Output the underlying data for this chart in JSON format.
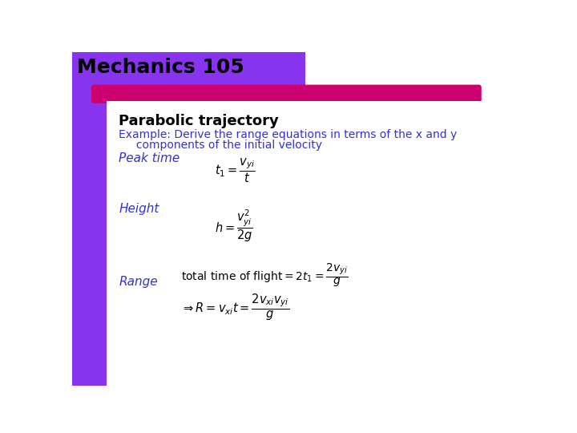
{
  "title": "Mechanics 105",
  "title_color": "#000000",
  "title_fontsize": 18,
  "bar_color": "#cc006e",
  "left_accent_color": "#8833ee",
  "section_title": "Parabolic trajectory",
  "section_title_fontsize": 13,
  "section_title_color": "#000000",
  "example_text_line1": "Example: Derive the range equations in terms of the x and y",
  "example_text_line2": "     components of the initial velocity",
  "example_color": "#3333cc",
  "example_fontsize": 10,
  "peak_time_label": "Peak time",
  "height_label": "Height",
  "range_label": "Range",
  "label_color": "#3333cc",
  "label_fontsize": 11,
  "eq1": "$t_1 = \\dfrac{v_{yi}}{t}$",
  "eq2": "$h = \\dfrac{v_{yi}^{2}}{2g}$",
  "eq3": "$\\mathrm{total\\ time\\ of\\ flight} = 2t_1 = \\dfrac{2v_{yi}}{g}$",
  "eq4": "$\\Rightarrow R = v_{xi}t = \\dfrac{2v_{xi}v_{yi}}{g}$",
  "eq_color": "#000000",
  "eq_fontsize": 10.5,
  "bg_color": "#ffffff"
}
